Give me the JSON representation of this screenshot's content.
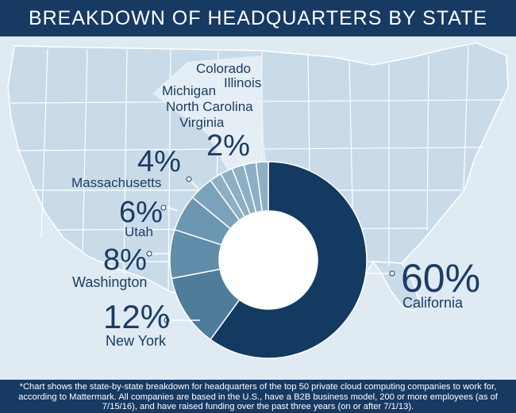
{
  "title": "BREAKDOWN OF HEADQUARTERS BY STATE",
  "footnote": "*Chart shows the state-by-state breakdown for headquarters of the top 50 private cloud computing companies to work for, according to Mattermark. All companies are based in the U.S., have a B2B business model, 200 or more employees (as of 7/15/16), and have raised funding over the past three years (on or after 7/1/13).",
  "colors": {
    "header": "#173a63",
    "background": "#dfeaf3",
    "map_states": "#c9dbe9",
    "map_borders": "#ffffff",
    "text": "#1b3c64",
    "slice_california": "#133a61",
    "slice_new_york": "#4f7c9b",
    "slice_washington": "#5f8daa",
    "slice_utah": "#6b97b2",
    "slice_massachusetts": "#7ba2bb",
    "slice_small": "#8cafc4",
    "slice_separator": "#ffffff"
  },
  "chart_data": {
    "type": "pie",
    "donut": true,
    "start": "12 o'clock, clockwise",
    "slices": [
      {
        "label": "California",
        "value": 60,
        "display": "60%"
      },
      {
        "label": "New York",
        "value": 12,
        "display": "12%"
      },
      {
        "label": "Washington",
        "value": 8,
        "display": "8%"
      },
      {
        "label": "Utah",
        "value": 6,
        "display": "6%"
      },
      {
        "label": "Massachusetts",
        "value": 4,
        "display": "4%"
      },
      {
        "label": "Virginia",
        "value": 2
      },
      {
        "label": "North Carolina",
        "value": 2
      },
      {
        "label": "Michigan",
        "value": 2
      },
      {
        "label": "Illinois",
        "value": 2
      },
      {
        "label": "Colorado",
        "value": 2
      }
    ],
    "small_group": {
      "display": "2%",
      "states": [
        "Colorado",
        "Illinois",
        "Michigan",
        "North Carolina",
        "Virginia"
      ]
    }
  }
}
